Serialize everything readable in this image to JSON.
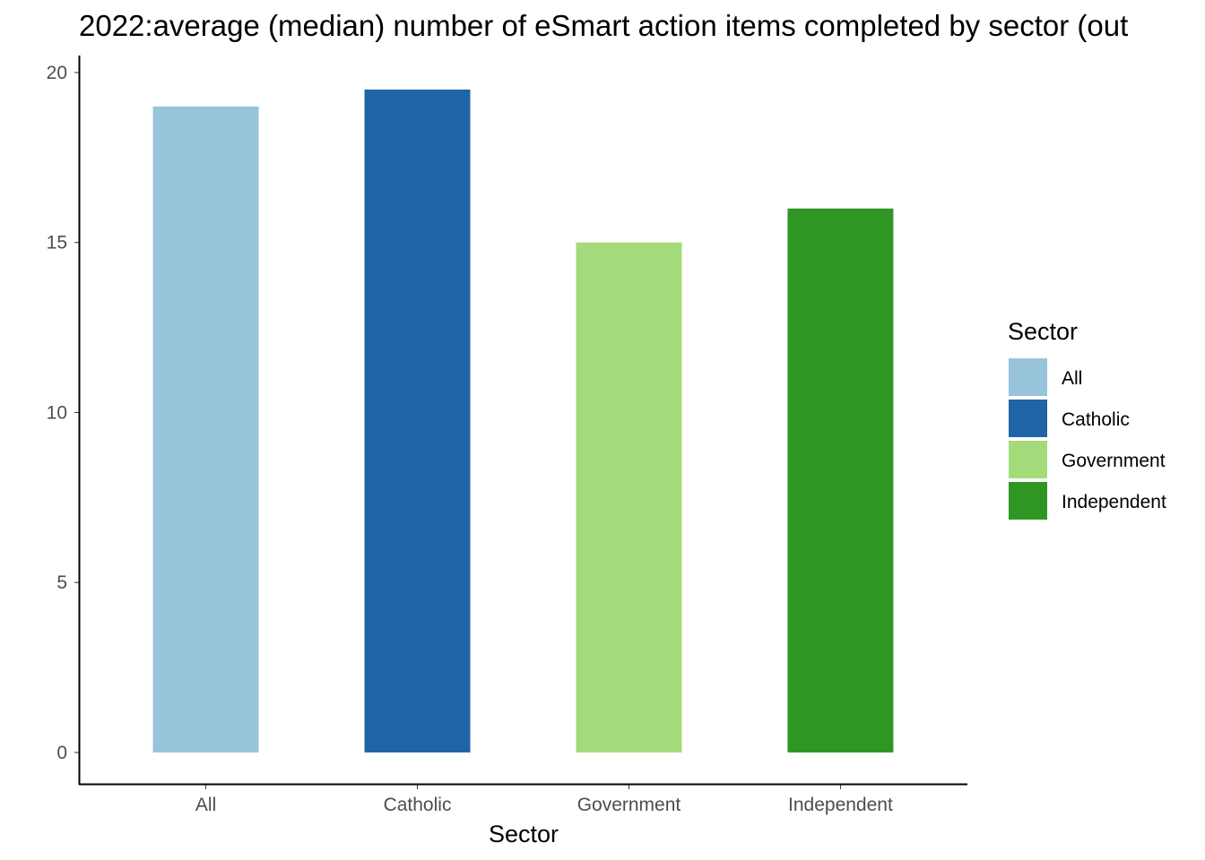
{
  "chart_data": {
    "type": "bar",
    "title": "2022:average (median) number of eSmart action items completed by sector (out",
    "xlabel": "Sector",
    "ylabel": "",
    "categories": [
      "All",
      "Catholic",
      "Government",
      "Independent"
    ],
    "values": [
      19,
      19.5,
      15,
      16
    ],
    "colors": [
      "#97c3db",
      "#1f64a6",
      "#a4db7a",
      "#2f9623"
    ],
    "ylim": [
      -0.95,
      20.5
    ],
    "yticks": [
      0,
      5,
      10,
      15,
      20
    ],
    "ytick_labels": [
      "0",
      "5",
      "10",
      "15",
      "20"
    ],
    "grid": false,
    "legend": {
      "title": "Sector",
      "position": "right",
      "entries": [
        "All",
        "Catholic",
        "Government",
        "Independent"
      ]
    }
  }
}
